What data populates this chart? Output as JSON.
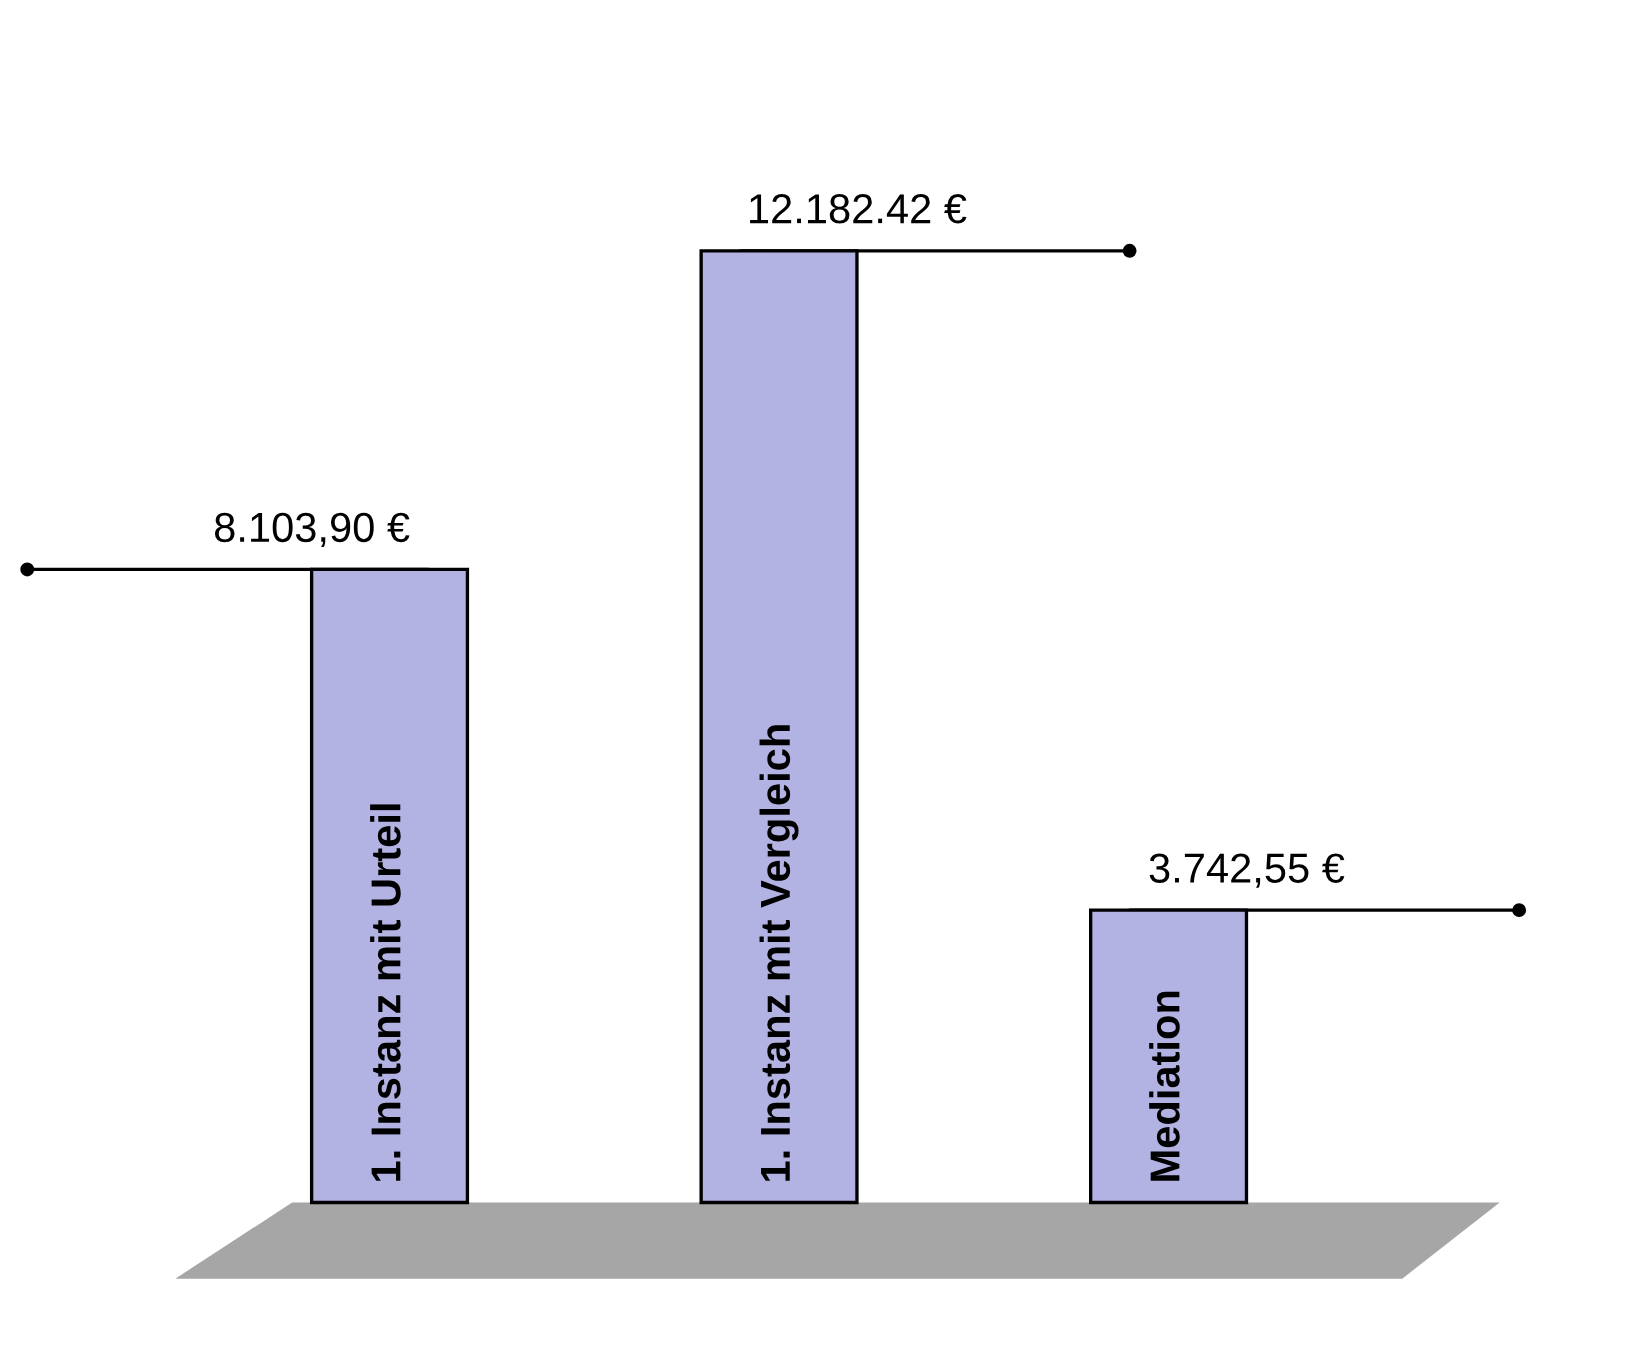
{
  "chart_data": {
    "type": "bar",
    "categories": [
      "1. Instanz mit Urteil",
      "1. Instanz mit Vergleich",
      "Mediation"
    ],
    "values": [
      8103.9,
      12182.42,
      3742.55
    ],
    "value_labels": [
      "8.103,90 €",
      "12.182.42 €",
      "3.742,55 €"
    ],
    "color": "#b3b3e3"
  }
}
